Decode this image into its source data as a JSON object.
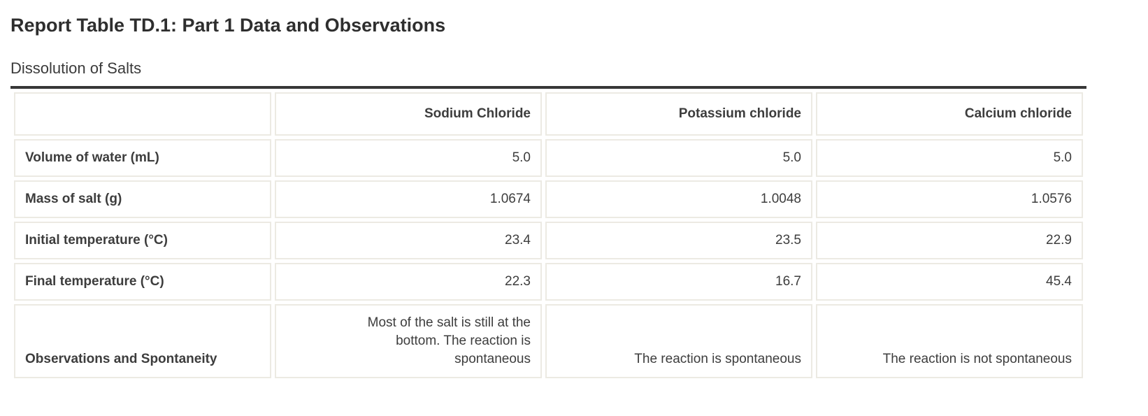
{
  "title": "Report Table TD.1: Part 1 Data and Observations",
  "subtitle": "Dissolution of Salts",
  "table": {
    "column_headers": [
      "Sodium Chloride",
      "Potassium chloride",
      "Calcium chloride"
    ],
    "rows": [
      {
        "label": "Volume of water (mL)",
        "values": [
          "5.0",
          "5.0",
          "5.0"
        ]
      },
      {
        "label": "Mass of salt (g)",
        "values": [
          "1.0674",
          "1.0048",
          "1.0576"
        ]
      },
      {
        "label": "Initial temperature (°C)",
        "values": [
          "23.4",
          "23.5",
          "22.9"
        ]
      },
      {
        "label": "Final temperature (°C)",
        "values": [
          "22.3",
          "16.7",
          "45.4"
        ]
      },
      {
        "label": "Observations and Spontaneity",
        "values": [
          "Most of the salt is still at the bottom. The reaction is spontaneous",
          "The reaction is spontaneous",
          "The reaction is not spontaneous"
        ]
      }
    ]
  },
  "chart_data": {
    "type": "table",
    "title": "Report Table TD.1: Part 1 Data and Observations",
    "subtitle": "Dissolution of Salts",
    "columns": [
      "",
      "Sodium Chloride",
      "Potassium chloride",
      "Calcium chloride"
    ],
    "rows": [
      [
        "Volume of water (mL)",
        5.0,
        5.0,
        5.0
      ],
      [
        "Mass of salt (g)",
        1.0674,
        1.0048,
        1.0576
      ],
      [
        "Initial temperature (°C)",
        23.4,
        23.5,
        22.9
      ],
      [
        "Final temperature (°C)",
        22.3,
        16.7,
        45.4
      ],
      [
        "Observations and Spontaneity",
        "Most of the salt is still at the bottom. The reaction is spontaneous",
        "The reaction is spontaneous",
        "The reaction is not spontaneous"
      ]
    ]
  },
  "colors": {
    "table_top_border": "#373737",
    "cell_border": "#ECEAE3",
    "text": "#3D3D3D",
    "title_text": "#2E2E2E",
    "background": "#FFFFFF"
  }
}
